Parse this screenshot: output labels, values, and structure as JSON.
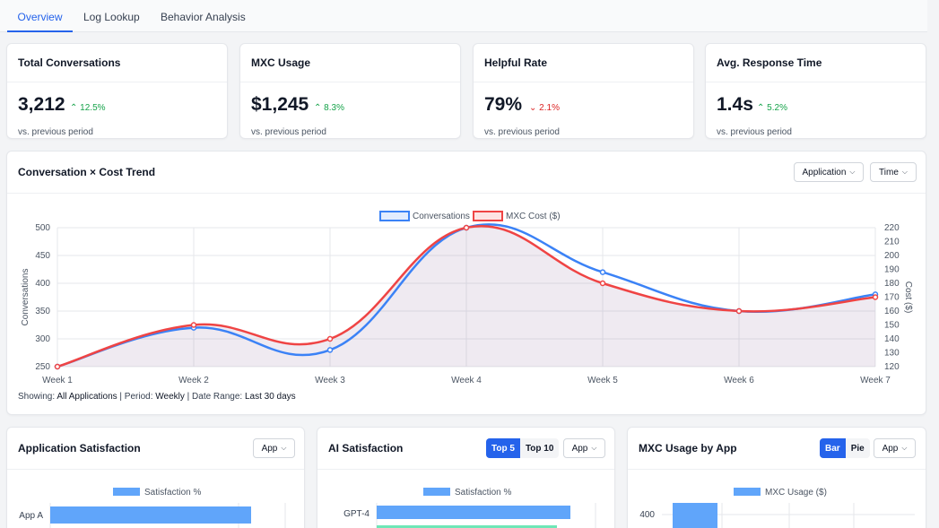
{
  "tabs": [
    "Overview",
    "Log Lookup",
    "Behavior Analysis"
  ],
  "kpis": [
    {
      "title": "Total Conversations",
      "value": "3,212",
      "delta": "12.5%",
      "dir": "up",
      "sub": "vs. previous period"
    },
    {
      "title": "MXC Usage",
      "value": "$1,245",
      "delta": "8.3%",
      "dir": "up",
      "sub": "vs. previous period"
    },
    {
      "title": "Helpful Rate",
      "value": "79%",
      "delta": "2.1%",
      "dir": "down",
      "sub": "vs. previous period"
    },
    {
      "title": "Avg. Response Time",
      "value": "1.4s",
      "delta": "5.2%",
      "dir": "up",
      "sub": "vs. previous period"
    }
  ],
  "trend": {
    "title": "Conversation × Cost Trend",
    "filters": {
      "application": "Application",
      "time": "Time"
    },
    "info": {
      "showing_label": "Showing:",
      "showing_value": "All Applications",
      "period_label": "Period:",
      "period_value": "Weekly",
      "range_label": "Date Range:",
      "range_value": "Last 30 days"
    }
  },
  "bottom": {
    "app_sat": {
      "title": "Application Satisfaction",
      "dropdown": "App"
    },
    "ai_sat": {
      "title": "AI Satisfaction",
      "top5": "Top 5",
      "top10": "Top 10",
      "dropdown": "App"
    },
    "mxc": {
      "title": "MXC Usage by App",
      "bar": "Bar",
      "pie": "Pie",
      "dropdown": "App"
    }
  },
  "colors": {
    "accent": "#2563eb",
    "conversations": "#3b82f6",
    "cost": "#ef4444",
    "bar": "#60a5fa",
    "green": "#6ee7b7"
  },
  "chart_data": [
    {
      "type": "line",
      "x": [
        "Week 1",
        "Week 2",
        "Week 3",
        "Week 4",
        "Week 5",
        "Week 6",
        "Week 7"
      ],
      "series": [
        {
          "name": "Conversations",
          "values": [
            250,
            320,
            280,
            500,
            420,
            350,
            380
          ],
          "axis": "left"
        },
        {
          "name": "MXC Cost ($)",
          "values": [
            120,
            150,
            140,
            220,
            180,
            160,
            170
          ],
          "axis": "right"
        }
      ],
      "ylabel": "Conversations",
      "y2label": "Cost ($)",
      "ylim": [
        250,
        500
      ],
      "y2lim": [
        120,
        220
      ],
      "yticks": [
        250,
        300,
        350,
        400,
        450,
        500
      ],
      "y2ticks": [
        120,
        130,
        140,
        150,
        160,
        170,
        180,
        190,
        200,
        210,
        220
      ],
      "legend": "top-center",
      "grid": true
    },
    {
      "type": "bar",
      "orientation": "horizontal",
      "series": [
        {
          "name": "Satisfaction %"
        }
      ],
      "categories": [
        "App A"
      ]
    },
    {
      "type": "bar",
      "orientation": "horizontal",
      "series": [
        {
          "name": "Satisfaction %"
        }
      ],
      "categories": [
        "GPT-4"
      ]
    },
    {
      "type": "bar",
      "series": [
        {
          "name": "MXC Usage ($)"
        }
      ],
      "yticks": [
        400
      ]
    }
  ]
}
